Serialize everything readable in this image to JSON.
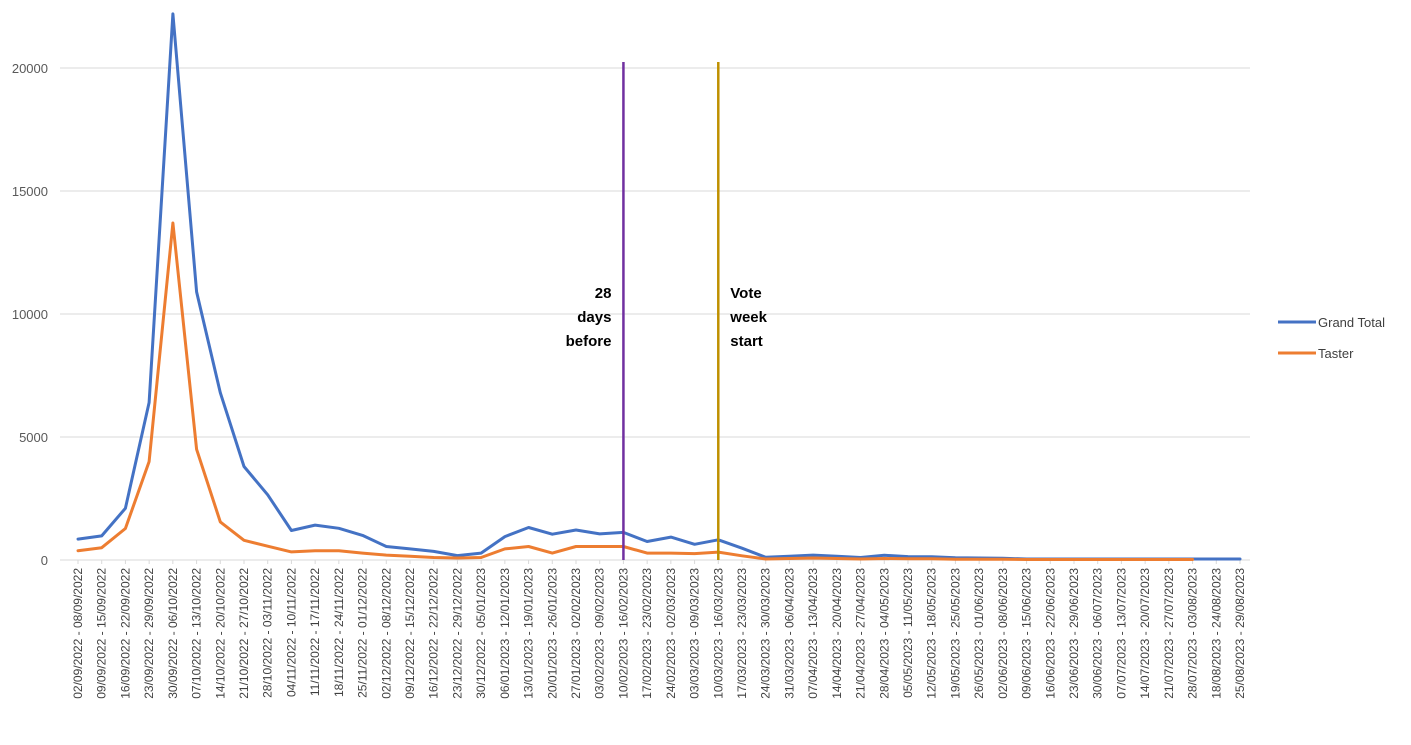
{
  "chart_data": {
    "type": "line",
    "title": "",
    "xlabel": "",
    "ylabel": "",
    "ylim": [
      0,
      22000
    ],
    "yticks": [
      0,
      5000,
      10000,
      15000,
      20000
    ],
    "grid": "horizontal",
    "legend_position": "right",
    "categories": [
      "02/09/2022 - 08/09/2022",
      "09/09/2022 - 15/09/2022",
      "16/09/2022 - 22/09/2022",
      "23/09/2022 - 29/09/2022",
      "30/09/2022 - 06/10/2022",
      "07/10/2022 - 13/10/2022",
      "14/10/2022 - 20/10/2022",
      "21/10/2022 - 27/10/2022",
      "28/10/2022 - 03/11/2022",
      "04/11/2022 - 10/11/2022",
      "11/11/2022 - 17/11/2022",
      "18/11/2022 - 24/11/2022",
      "25/11/2022 - 01/12/2022",
      "02/12/2022 - 08/12/2022",
      "09/12/2022 - 15/12/2022",
      "16/12/2022 - 22/12/2022",
      "23/12/2022 - 29/12/2022",
      "30/12/2022 - 05/01/2023",
      "06/01/2023 - 12/01/2023",
      "13/01/2023 - 19/01/2023",
      "20/01/2023 - 26/01/2023",
      "27/01/2023 - 02/02/2023",
      "03/02/2023 - 09/02/2023",
      "10/02/2023 - 16/02/2023",
      "17/02/2023 - 23/02/2023",
      "24/02/2023 - 02/03/2023",
      "03/03/2023 - 09/03/2023",
      "10/03/2023 - 16/03/2023",
      "17/03/2023 - 23/03/2023",
      "24/03/2023 - 30/03/2023",
      "31/03/2023 - 06/04/2023",
      "07/04/2023 - 13/04/2023",
      "14/04/2023 - 20/04/2023",
      "21/04/2023 - 27/04/2023",
      "28/04/2023 - 04/05/2023",
      "05/05/2023 - 11/05/2023",
      "12/05/2023 - 18/05/2023",
      "19/05/2023 - 25/05/2023",
      "26/05/2023 - 01/06/2023",
      "02/06/2023 - 08/06/2023",
      "09/06/2023 - 15/06/2023",
      "16/06/2023 - 22/06/2023",
      "23/06/2023 - 29/06/2023",
      "30/06/2023 - 06/07/2023",
      "07/07/2023 - 13/07/2023",
      "14/07/2023 - 20/07/2023",
      "21/07/2023 - 27/07/2023",
      "28/07/2023 - 03/08/2023",
      "18/08/2023 - 24/08/2023",
      "25/08/2023 - 29/08/2023"
    ],
    "series": [
      {
        "name": "Grand Total",
        "color": "#4472C4",
        "values": [
          850,
          980,
          2100,
          6400,
          22200,
          10900,
          6800,
          3800,
          2650,
          1200,
          1420,
          1290,
          1000,
          550,
          450,
          350,
          180,
          280,
          950,
          1320,
          1050,
          1220,
          1060,
          1120,
          750,
          930,
          640,
          820,
          480,
          110,
          150,
          200,
          150,
          100,
          190,
          140,
          130,
          90,
          80,
          70,
          40,
          40,
          40,
          40,
          40,
          40,
          40,
          40,
          40,
          40
        ]
      },
      {
        "name": "Taster",
        "color": "#ED7D31",
        "values": [
          380,
          500,
          1280,
          4000,
          13700,
          4500,
          1550,
          800,
          560,
          330,
          380,
          380,
          280,
          200,
          150,
          100,
          80,
          100,
          450,
          550,
          280,
          550,
          550,
          550,
          280,
          280,
          260,
          320,
          170,
          40,
          60,
          80,
          60,
          40,
          60,
          50,
          50,
          30,
          30,
          30,
          20,
          20,
          20,
          20,
          20,
          20,
          20,
          20,
          null,
          null
        ]
      }
    ],
    "annotations": [
      {
        "label_lines": [
          "28",
          "days",
          "before"
        ],
        "x_category": "10/02/2023 - 16/02/2023",
        "color": "#7030A0"
      },
      {
        "label_lines": [
          "Vote",
          "week",
          "start"
        ],
        "x_category": "10/03/2023 - 16/03/2023",
        "color": "#BF9000"
      }
    ]
  }
}
